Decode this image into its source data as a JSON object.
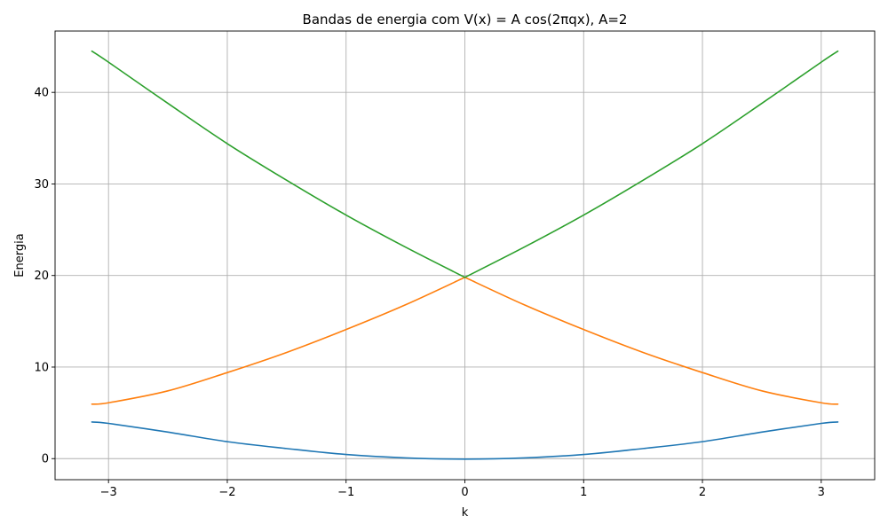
{
  "chart_data": {
    "type": "line",
    "title": "Bandas de energia com V(x) = A cos(2πqx), A=2",
    "xlabel": "k",
    "ylabel": "Energia",
    "xlim": [
      -3.45,
      3.45
    ],
    "ylim": [
      -2.3,
      46.7
    ],
    "x_ticks": [
      -3,
      -2,
      -1,
      0,
      1,
      2,
      3
    ],
    "x_tick_labels": [
      "−3",
      "−2",
      "−1",
      "0",
      "1",
      "2",
      "3"
    ],
    "y_ticks": [
      0,
      10,
      20,
      30,
      40
    ],
    "y_tick_labels": [
      "0",
      "10",
      "20",
      "30",
      "40"
    ],
    "grid": true,
    "legend": "none",
    "x": [
      -3.14,
      -3.0,
      -2.5,
      -2.0,
      -1.5,
      -1.0,
      -0.5,
      0.0,
      0.5,
      1.0,
      1.5,
      2.0,
      2.5,
      3.0,
      3.14
    ],
    "series": [
      {
        "color": "#1f77b4",
        "values": [
          4.0,
          3.85,
          2.9,
          1.85,
          1.1,
          0.45,
          0.08,
          -0.05,
          0.08,
          0.45,
          1.1,
          1.85,
          2.9,
          3.85,
          4.0
        ]
      },
      {
        "color": "#ff7f0e",
        "values": [
          5.95,
          6.1,
          7.4,
          9.4,
          11.6,
          14.1,
          16.8,
          19.8,
          16.8,
          14.1,
          11.6,
          9.4,
          7.4,
          6.1,
          5.95
        ]
      },
      {
        "color": "#2ca02c",
        "values": [
          44.5,
          43.3,
          38.8,
          34.4,
          30.4,
          26.6,
          23.1,
          19.8,
          23.1,
          26.6,
          30.4,
          34.4,
          38.8,
          43.3,
          44.5
        ]
      }
    ]
  }
}
